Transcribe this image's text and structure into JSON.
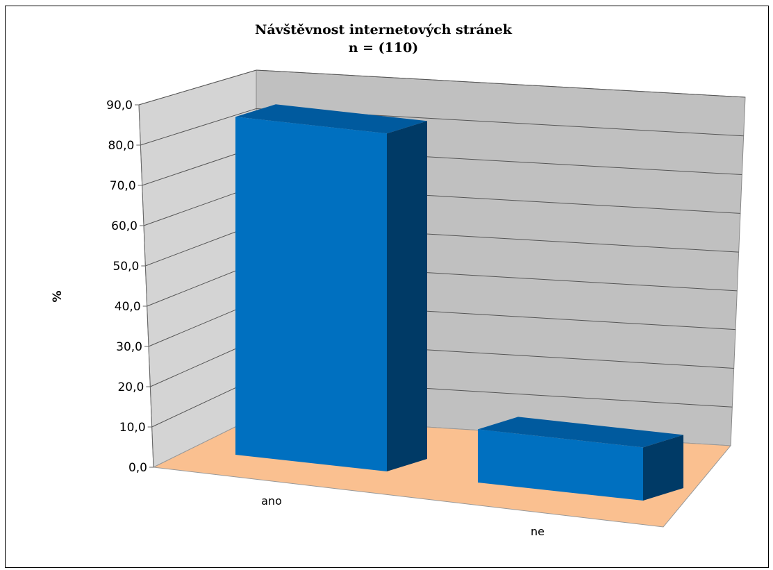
{
  "chart_data": {
    "type": "bar",
    "title": "Návštěvnost internetových stránek",
    "subtitle": "n = (110)",
    "ylabel": "%",
    "xlabel": "",
    "categories": [
      "ano",
      "ne"
    ],
    "values": [
      86.4,
      13.6
    ],
    "ylim": [
      0,
      90
    ],
    "yticks": [
      0,
      10,
      20,
      30,
      40,
      50,
      60,
      70,
      80,
      90
    ],
    "ytick_labels": [
      "0,0",
      "10,0",
      "20,0",
      "30,0",
      "40,0",
      "50,0",
      "60,0",
      "70,0",
      "80,0",
      "90,0"
    ],
    "grid": true,
    "legend": "none",
    "is_3d": true,
    "colors": {
      "bar_front": "#0070C0",
      "bar_top": "#005A9E",
      "bar_side": "#003A66",
      "back_wall": "#C0C0C0",
      "side_wall": "#D4D4D4",
      "floor": "#FAC090",
      "gridline": "#555555"
    }
  }
}
